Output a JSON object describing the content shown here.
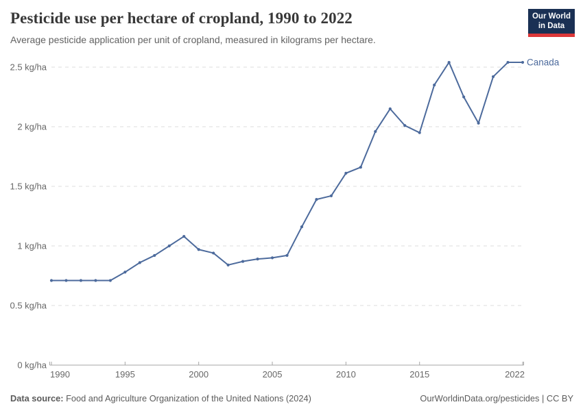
{
  "header": {
    "title": "Pesticide use per hectare of cropland, 1990 to 2022",
    "subtitle": "Average pesticide application per unit of cropland, measured in kilograms per hectare.",
    "logo": {
      "line1": "Our World",
      "line2": "in Data"
    }
  },
  "chart_data": {
    "type": "line",
    "title": "Pesticide use per hectare of cropland, 1990 to 2022",
    "xlabel": "",
    "ylabel": "kg/ha",
    "x": [
      1990,
      1991,
      1992,
      1993,
      1994,
      1995,
      1996,
      1997,
      1998,
      1999,
      2000,
      2001,
      2002,
      2003,
      2004,
      2005,
      2006,
      2007,
      2008,
      2009,
      2010,
      2011,
      2012,
      2013,
      2014,
      2015,
      2016,
      2017,
      2018,
      2019,
      2020,
      2021,
      2022
    ],
    "series": [
      {
        "name": "Canada",
        "color": "#4c6a9c",
        "values": [
          0.71,
          0.71,
          0.71,
          0.71,
          0.71,
          0.78,
          0.86,
          0.92,
          1.0,
          1.08,
          0.97,
          0.94,
          0.84,
          0.87,
          0.89,
          0.9,
          0.92,
          1.16,
          1.39,
          1.42,
          1.61,
          1.66,
          1.96,
          2.15,
          2.01,
          1.95,
          2.35,
          2.54,
          2.25,
          2.03,
          2.42,
          2.54,
          2.54
        ]
      }
    ],
    "ylim": [
      0,
      2.6
    ],
    "xlim": [
      1990,
      2022
    ],
    "yticks": [
      0,
      0.5,
      1,
      1.5,
      2,
      2.5
    ],
    "ytick_labels": [
      "0 kg/ha",
      "0.5 kg/ha",
      "1 kg/ha",
      "1.5 kg/ha",
      "2 kg/ha",
      "2.5 kg/ha"
    ],
    "xticks": [
      1990,
      1995,
      2000,
      2005,
      2010,
      2015,
      2022
    ],
    "grid": "dashed-horizontal",
    "legend": "end-of-line-label"
  },
  "footer": {
    "source_label": "Data source:",
    "source_text": " Food and Agriculture Organization of the United Nations (2024)",
    "credit": "OurWorldinData.org/pesticides | CC BY"
  },
  "colors": {
    "series": "#4c6a9c",
    "logo_bg": "#1a3054",
    "logo_accent": "#dc3839",
    "grid": "#dcdcdc",
    "axis": "#a5a5a5",
    "text_muted": "#676767",
    "title_text": "#383838"
  }
}
